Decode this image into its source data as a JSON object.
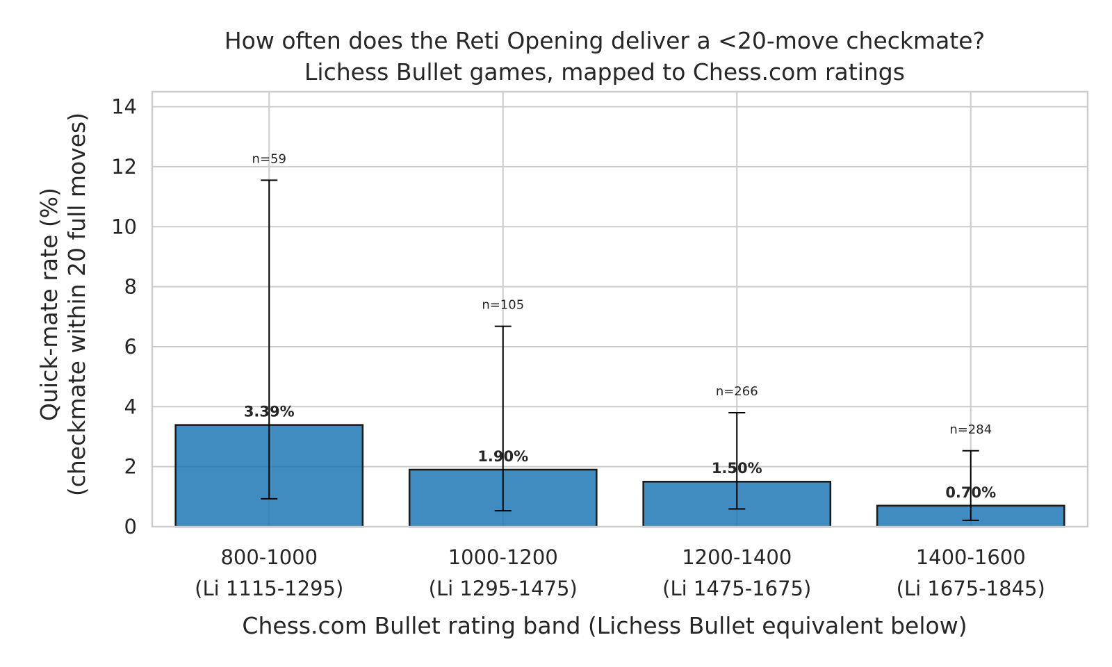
{
  "chart_data": {
    "type": "bar",
    "title": "How often does the Reti Opening deliver a <20-move checkmate?",
    "subtitle": "Lichess Bullet games, mapped to Chess.com ratings",
    "xlabel": "Chess.com Bullet rating band (Lichess Bullet equivalent below)",
    "ylabel_line1": "Quick-mate rate (%)",
    "ylabel_line2": "(checkmate within 20 full moves)",
    "ylim": [
      0,
      14.5
    ],
    "yticks": [
      0,
      2,
      4,
      6,
      8,
      10,
      12,
      14
    ],
    "grid": true,
    "categories": [
      {
        "label": "800-1000",
        "sublabel": "(Li 1115-1295)"
      },
      {
        "label": "1000-1200",
        "sublabel": "(Li 1295-1475)"
      },
      {
        "label": "1200-1400",
        "sublabel": "(Li 1475-1675)"
      },
      {
        "label": "1400-1600",
        "sublabel": "(Li 1675-1845)"
      }
    ],
    "values": [
      3.39,
      1.9,
      1.5,
      0.7
    ],
    "value_labels": [
      "3.39%",
      "1.90%",
      "1.50%",
      "0.70%"
    ],
    "error_low": [
      0.93,
      0.53,
      0.59,
      0.21
    ],
    "error_high": [
      11.55,
      6.68,
      3.8,
      2.53
    ],
    "n_labels": [
      "n=59",
      "n=105",
      "n=266",
      "n=284"
    ],
    "bar_color": "#1f77b4"
  }
}
